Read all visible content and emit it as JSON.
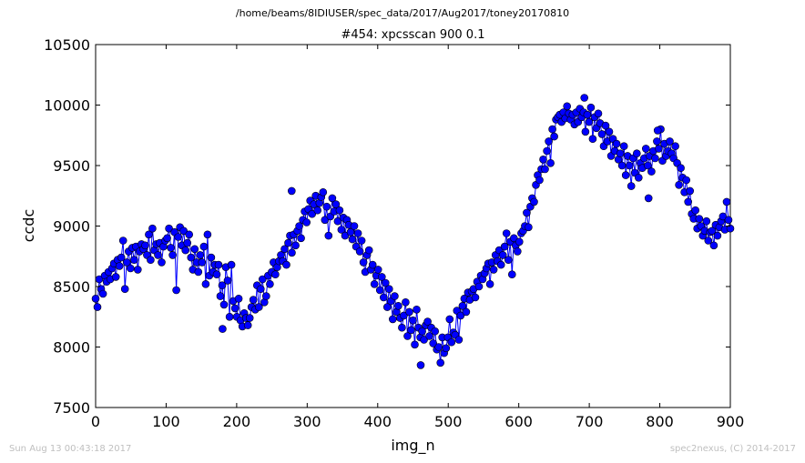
{
  "suptitle": "/home/beams/8IDIUSER/spec_data/2017/Aug2017/toney20170810",
  "footer_left": "Sun Aug 13 00:43:18 2017",
  "footer_right": "spec2nexus, (C) 2014-2017",
  "colors": {
    "line": "#0000ff",
    "marker": "#0000ff",
    "marker_edge": "#000000"
  },
  "chart_data": {
    "type": "line",
    "title": "#454: xpcsscan 900 0.1",
    "xlabel": "img_n",
    "ylabel": "ccdc",
    "xlim": [
      0,
      900
    ],
    "ylim": [
      7500,
      10500
    ],
    "xticks": [
      0,
      100,
      200,
      300,
      400,
      500,
      600,
      700,
      800,
      900
    ],
    "yticks": [
      7500,
      8000,
      8500,
      9000,
      9500,
      10000,
      10500
    ],
    "grid": false,
    "markers": "circle",
    "series": [
      {
        "values": [
          8400,
          8330,
          8560,
          8480,
          8440,
          8590,
          8540,
          8620,
          8560,
          8650,
          8690,
          8580,
          8720,
          8670,
          8740,
          8880,
          8480,
          8700,
          8790,
          8650,
          8820,
          8720,
          8830,
          8640,
          8790,
          8850,
          8810,
          8840,
          8760,
          8930,
          8720,
          8980,
          8800,
          8850,
          8760,
          8860,
          8700,
          8830,
          8880,
          8900,
          8980,
          8820,
          8760,
          8950,
          8470,
          8910,
          8990,
          8840,
          8960,
          8800,
          8860,
          8930,
          8740,
          8640,
          8810,
          8700,
          8620,
          8760,
          8700,
          8830,
          8520,
          8930,
          8590,
          8740,
          8620,
          8680,
          8600,
          8680,
          8420,
          8510,
          8350,
          8660,
          8550,
          8250,
          8680,
          8380,
          8320,
          8250,
          8400,
          8220,
          8170,
          8280,
          8240,
          8180,
          8240,
          8330,
          8390,
          8310,
          8510,
          8330,
          8480,
          8560,
          8370,
          8420,
          8590,
          8520,
          8620,
          8700,
          8600,
          8660,
          8710,
          8760,
          8710,
          8810,
          8680,
          8860,
          8920,
          8780,
          8930,
          8840,
          8960,
          9000,
          8900,
          9050,
          9120,
          9030,
          9140,
          9210,
          9100,
          9180,
          9250,
          9130,
          9190,
          9240,
          9280,
          9050,
          9160,
          8920,
          9080,
          9230,
          9120,
          9180,
          9040,
          9130,
          8970,
          9070,
          8920,
          9050,
          9010,
          8950,
          8890,
          9000,
          8830,
          8940,
          8790,
          8880,
          8700,
          8620,
          8760,
          8800,
          8640,
          8680,
          8520,
          8590,
          8640,
          8470,
          8580,
          8410,
          8530,
          8330,
          8480,
          8380,
          8230,
          8420,
          8290,
          8340,
          8240,
          8160,
          8260,
          8370,
          8090,
          8290,
          8140,
          8220,
          8020,
          8310,
          8160,
          8080,
          8130,
          8060,
          8180,
          8210,
          8090,
          8160,
          8030,
          8130,
          7980,
          8000,
          7870,
          8080,
          7950,
          7990,
          8080,
          8230,
          8040,
          8120,
          8100,
          8300,
          8060,
          8260,
          8340,
          8400,
          8290,
          8450,
          8390,
          8460,
          8480,
          8410,
          8540,
          8500,
          8590,
          8560,
          8610,
          8650,
          8690,
          8520,
          8700,
          8640,
          8760,
          8710,
          8800,
          8680,
          8760,
          8830,
          8940,
          8720,
          8870,
          8600,
          8900,
          8840,
          8790,
          8870,
          8940,
          8960,
          9000,
          9110,
          8990,
          9160,
          9230,
          9200,
          9340,
          9420,
          9380,
          9470,
          9550,
          9470,
          9620,
          9700,
          9520,
          9800,
          9740,
          9880,
          9900,
          9920,
          9860,
          9940,
          9890,
          9990,
          9930,
          9880,
          9920,
          9840,
          9940,
          9860,
          9970,
          9900,
          9940,
          9780,
          9920,
          9860,
          9980,
          9720,
          9900,
          9810,
          9930,
          9850,
          9760,
          9660,
          9830,
          9700,
          9780,
          9580,
          9720,
          9620,
          9680,
          9550,
          9600,
          9500,
          9660,
          9420,
          9580,
          9500,
          9330,
          9560,
          9440,
          9600,
          9400,
          9520,
          9480,
          9560,
          9640,
          9500,
          9580,
          9450,
          9620,
          9560,
          9700,
          9640,
          9800,
          9540,
          9680,
          9580,
          9620,
          9700,
          9600,
          9560,
          9660,
          9520,
          9340,
          9480,
          9400,
          9280,
          9380,
          9200,
          9290,
          9100,
          9060,
          9130,
          8980,
          9060,
          9000,
          8920,
          8960,
          9040,
          8880,
          8950,
          8960,
          8840,
          9010,
          8920,
          8990,
          9040,
          9080,
          8970,
          9200,
          9050,
          8980
        ],
        "values_note": "",
        "extra_points": [
          {
            "x": 180,
            "y": 8150
          },
          {
            "x": 278,
            "y": 9290
          },
          {
            "x": 461,
            "y": 7850
          },
          {
            "x": 693,
            "y": 10060
          },
          {
            "x": 797,
            "y": 9790
          },
          {
            "x": 784,
            "y": 9230
          }
        ]
      }
    ]
  }
}
